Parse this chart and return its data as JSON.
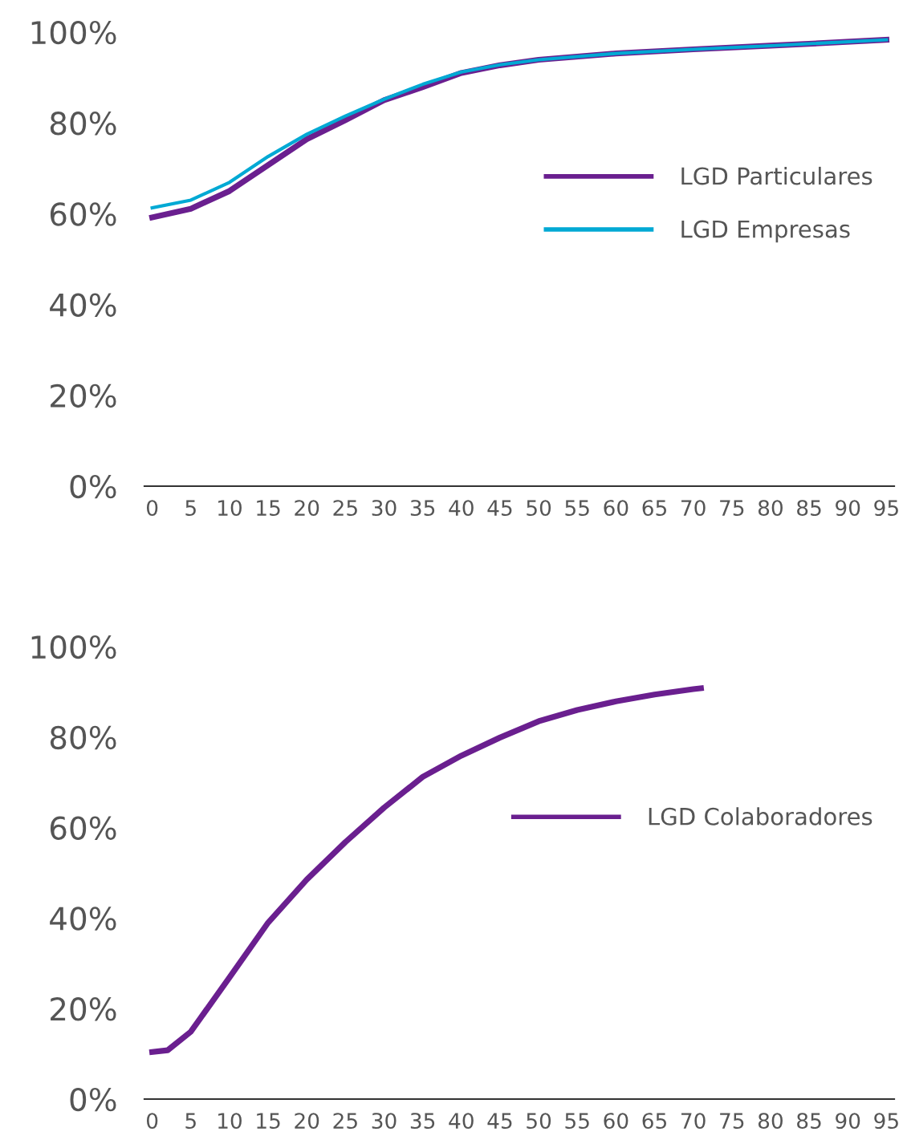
{
  "chart_data": [
    {
      "type": "line",
      "x": [
        0,
        5,
        10,
        15,
        20,
        25,
        30,
        35,
        40,
        45,
        50,
        60,
        70,
        80,
        95
      ],
      "series": [
        {
          "name": "LGD Particulares",
          "color": "#6a1f8f",
          "values": [
            59.2,
            61.1,
            65,
            70.7,
            76.4,
            80.6,
            85,
            87.9,
            91,
            92.7,
            93.9,
            95.3,
            96.2,
            97,
            98.3
          ]
        },
        {
          "name": "LGD Empresas",
          "color": "#00a9d4",
          "values": [
            61.3,
            63,
            66.9,
            72.6,
            77.5,
            81.5,
            85.2,
            88.5,
            91.2,
            92.8,
            93.9,
            95.3,
            96.2,
            97,
            98.3
          ]
        }
      ],
      "xlim": [
        -1,
        96
      ],
      "xticks": [
        0,
        5,
        10,
        15,
        20,
        25,
        30,
        35,
        40,
        45,
        50,
        55,
        60,
        65,
        70,
        75,
        80,
        85,
        90,
        95
      ],
      "ylim": [
        0,
        100
      ],
      "yticks": [
        {
          "value": 0,
          "label": "0%"
        },
        {
          "value": 20,
          "label": "20%"
        },
        {
          "value": 40,
          "label": "40%"
        },
        {
          "value": 60,
          "label": "60%"
        },
        {
          "value": 80,
          "label": "80%"
        },
        {
          "value": 100,
          "label": "100%"
        }
      ],
      "grid": false,
      "legend": "right",
      "marker": "none",
      "line_style": "solid"
    },
    {
      "type": "line",
      "x": [
        0,
        2,
        5,
        10,
        15,
        20,
        25,
        30,
        35,
        40,
        45,
        50,
        55,
        60,
        65,
        70,
        71
      ],
      "series": [
        {
          "name": "LGD Colaboradores",
          "color": "#6a1f8f",
          "values": [
            10.4,
            10.8,
            14.9,
            26.9,
            39,
            48.5,
            56.8,
            64.4,
            71.2,
            75.9,
            79.9,
            83.5,
            86,
            87.9,
            89.4,
            90.6,
            90.8
          ]
        }
      ],
      "xlim": [
        -1,
        96
      ],
      "xticks": [
        0,
        5,
        10,
        15,
        20,
        25,
        30,
        35,
        40,
        45,
        50,
        55,
        60,
        65,
        70,
        75,
        80,
        85,
        90,
        95
      ],
      "ylim": [
        0,
        100
      ],
      "yticks": [
        {
          "value": 0,
          "label": "0%"
        },
        {
          "value": 20,
          "label": "20%"
        },
        {
          "value": 40,
          "label": "40%"
        },
        {
          "value": 60,
          "label": "60%"
        },
        {
          "value": 80,
          "label": "80%"
        },
        {
          "value": 100,
          "label": "100%"
        }
      ],
      "grid": false,
      "legend": "right",
      "marker": "none",
      "line_style": "solid"
    }
  ]
}
